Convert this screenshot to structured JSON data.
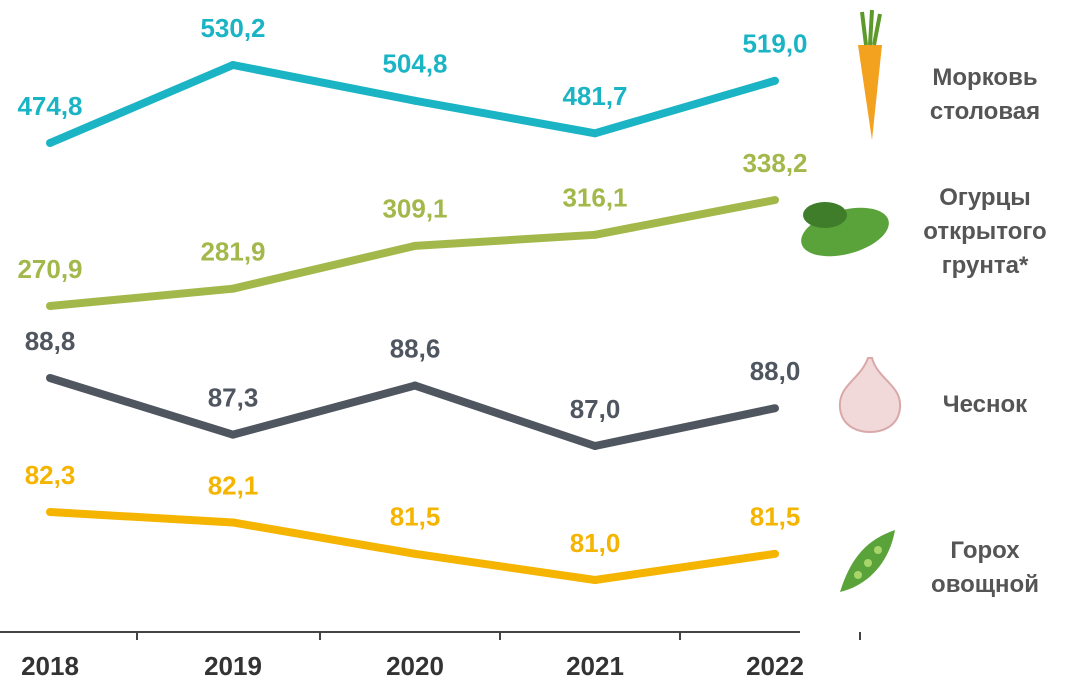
{
  "chart_data": {
    "type": "line",
    "categories": [
      "2018",
      "2019",
      "2020",
      "2021",
      "2022"
    ],
    "series": [
      {
        "name": "Морковь столовая",
        "color": "#1ab4c4",
        "values": [
          474.8,
          530.2,
          504.8,
          481.7,
          519.0
        ],
        "value_labels": [
          "474,8",
          "530,2",
          "504,8",
          "481,7",
          "519,0"
        ]
      },
      {
        "name": "Огурцы открытого грунта*",
        "color": "#a3b84a",
        "values": [
          270.9,
          281.9,
          309.1,
          316.1,
          338.2
        ],
        "value_labels": [
          "270,9",
          "281,9",
          "309,1",
          "316,1",
          "338,2"
        ]
      },
      {
        "name": "Чеснок",
        "color": "#4f5660",
        "values": [
          88.8,
          87.3,
          88.6,
          87.0,
          88.0
        ],
        "value_labels": [
          "88,8",
          "87,3",
          "88,6",
          "87,0",
          "88,0"
        ]
      },
      {
        "name": "Горох овощной",
        "color": "#f5b400",
        "values": [
          82.3,
          82.1,
          81.5,
          81.0,
          81.5
        ],
        "value_labels": [
          "82,3",
          "82,1",
          "81,5",
          "81,0",
          "81,5"
        ]
      }
    ]
  }
}
